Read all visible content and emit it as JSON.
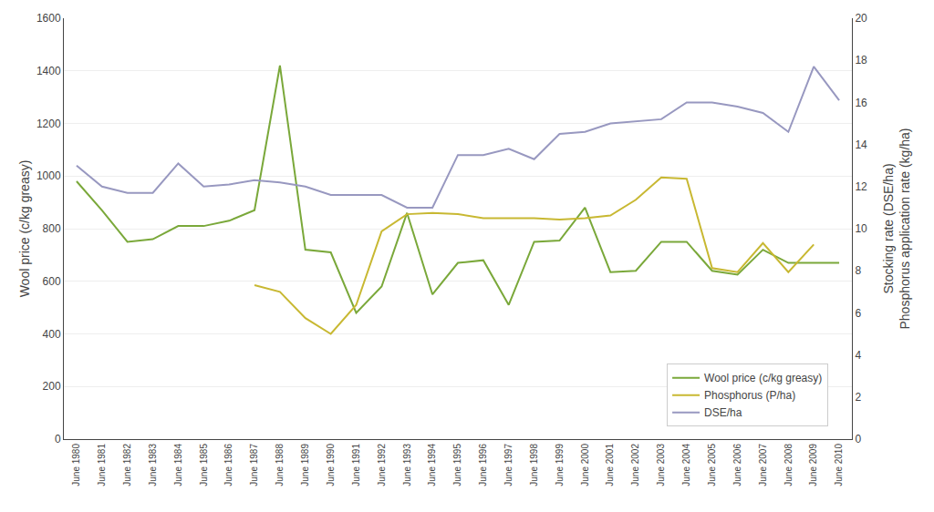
{
  "chart_data": {
    "type": "line",
    "categories": [
      "June 1980",
      "June 1981",
      "June 1982",
      "June 1983",
      "June 1984",
      "June 1985",
      "June 1986",
      "June 1987",
      "June 1988",
      "June 1989",
      "June 1990",
      "June 1991",
      "June 1992",
      "June 1993",
      "June 1994",
      "June 1995",
      "June 1996",
      "June 1997",
      "June 1998",
      "June 1999",
      "June 2000",
      "June 2001",
      "June 2002",
      "June 2003",
      "June 2004",
      "June 2005",
      "June 2006",
      "June 2007",
      "June 2008",
      "June 2009",
      "June 2010"
    ],
    "series": [
      {
        "name": "Wool price (c/kg greasy)",
        "color": "#7aa83a",
        "values": [
          980,
          870,
          750,
          760,
          810,
          810,
          830,
          870,
          1420,
          720,
          710,
          480,
          580,
          860,
          550,
          670,
          680,
          510,
          750,
          755,
          880,
          635,
          640,
          750,
          750,
          640,
          625,
          720,
          670,
          670,
          670
        ]
      },
      {
        "name": "Phosphorus (P/ha)",
        "color": "#c8b832",
        "values": [
          null,
          null,
          null,
          null,
          null,
          null,
          null,
          585,
          560,
          460,
          400,
          510,
          790,
          855,
          860,
          855,
          840,
          840,
          840,
          835,
          840,
          850,
          910,
          995,
          990,
          650,
          635,
          745,
          635,
          740,
          null
        ]
      },
      {
        "name": "DSE/ha",
        "color": "#9898c0",
        "axis": "y2",
        "values": [
          13.0,
          12.0,
          11.7,
          11.7,
          13.1,
          12.0,
          12.1,
          12.3,
          12.2,
          12.0,
          11.6,
          11.6,
          11.6,
          11.0,
          11.0,
          13.5,
          13.5,
          13.8,
          13.3,
          14.5,
          14.6,
          15.0,
          15.1,
          15.2,
          16.0,
          16.0,
          15.8,
          15.5,
          14.6,
          17.7,
          16.1
        ]
      }
    ],
    "ylabel": "Wool price (c/kg greasy)",
    "y2label": "Stocking rate (DSE/ha)\nPhosphorus application rate (kg/ha)",
    "ylim": [
      0,
      1600
    ],
    "yticks": [
      0,
      200,
      400,
      600,
      800,
      1000,
      1200,
      1400,
      1600
    ],
    "y2lim": [
      0,
      20
    ],
    "y2ticks": [
      0,
      2,
      4,
      6,
      8,
      10,
      12,
      14,
      16,
      18,
      20
    ],
    "grid": true,
    "legend": "lower right"
  }
}
